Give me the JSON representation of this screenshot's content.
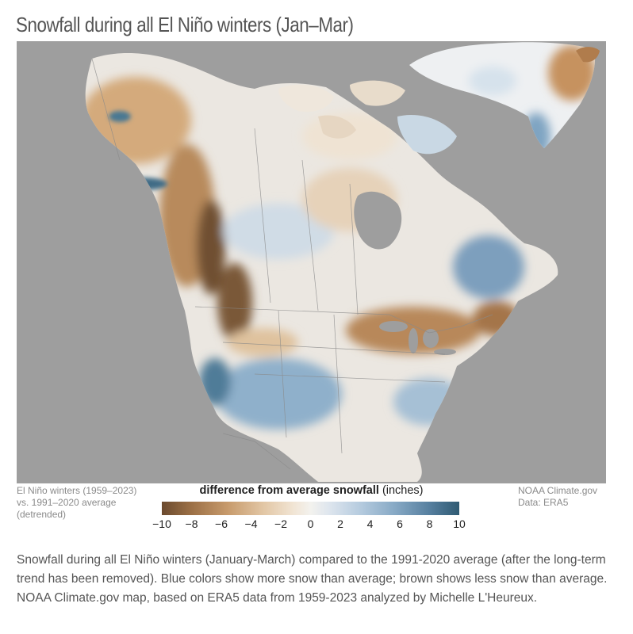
{
  "title": "Snowfall during all El Niño winters (Jan–Mar)",
  "footer": {
    "left_line1": "El Niño winters (1959–2023)",
    "left_line2": "vs. 1991–2020 average",
    "left_line3": "(detrended)",
    "right_line1": "NOAA Climate.gov",
    "right_line2": "Data: ERA5"
  },
  "legend": {
    "title_bold": "difference from average snowfall",
    "title_unit": "(inches)",
    "ticks": [
      "−10",
      "−8",
      "−6",
      "−4",
      "−2",
      "0",
      "2",
      "4",
      "6",
      "8",
      "10"
    ],
    "range": [
      -10,
      10
    ],
    "colors": {
      "low": "#6b4a2e",
      "mid": "#f3f2ee",
      "high": "#2f5a72",
      "ocean": "#9d9d9d",
      "land_neutral": "#e9e6e0"
    }
  },
  "caption": "Snowfall during all El Niño winters (January-March) compared to the 1991-2020 average (after the long-term trend has been removed). Blue colors show more snow than average; brown shows less snow than average. NOAA Climate.gov map, based on ERA5 data from 1959-2023 analyzed by Michelle L'Heureux."
}
